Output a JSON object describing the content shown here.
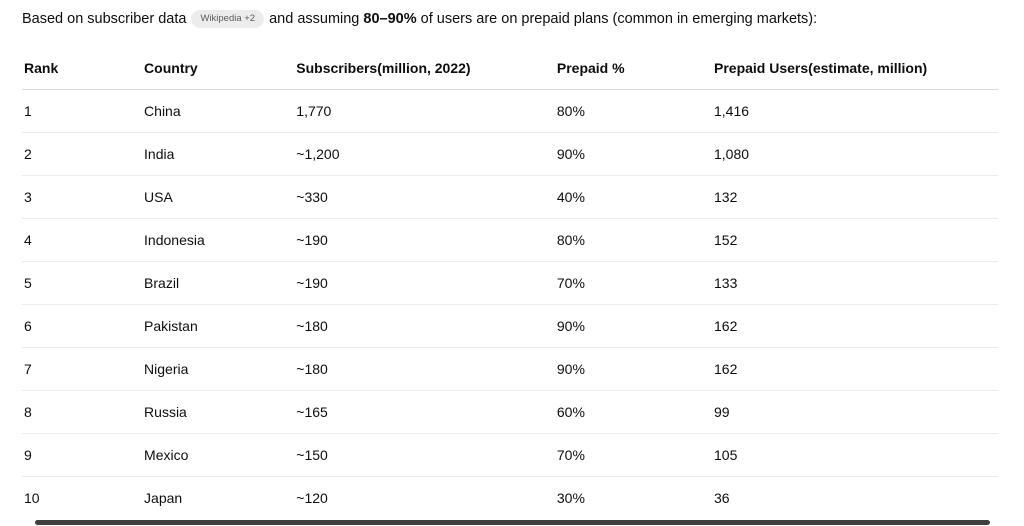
{
  "intro": {
    "text_before": "Based on subscriber data",
    "badge": "Wikipedia +2",
    "text_middle": "and assuming",
    "bold": "80–90%",
    "text_after": "of users are on prepaid plans (common in emerging markets):"
  },
  "table": {
    "columns": [
      "Rank",
      "Country",
      "Subscribers(million, 2022)",
      "Prepaid %",
      "Prepaid Users(estimate, million)"
    ],
    "rows": [
      [
        "1",
        "China",
        "1,770",
        "80%",
        "1,416"
      ],
      [
        "2",
        "India",
        "~1,200",
        "90%",
        "1,080"
      ],
      [
        "3",
        "USA",
        "~330",
        "40%",
        "132"
      ],
      [
        "4",
        "Indonesia",
        "~190",
        "80%",
        "152"
      ],
      [
        "5",
        "Brazil",
        "~190",
        "70%",
        "133"
      ],
      [
        "6",
        "Pakistan",
        "~180",
        "90%",
        "162"
      ],
      [
        "7",
        "Nigeria",
        "~180",
        "90%",
        "162"
      ],
      [
        "8",
        "Russia",
        "~165",
        "60%",
        "99"
      ],
      [
        "9",
        "Mexico",
        "~150",
        "70%",
        "105"
      ],
      [
        "10",
        "Japan",
        "~120",
        "30%",
        "36"
      ]
    ]
  },
  "colors": {
    "text": "#0d0d0d",
    "badge_bg": "#ececec",
    "badge_text": "#5d5d5d",
    "header_border": "#d9d9d9",
    "row_border": "#ececec",
    "bottom_bar": "#3f3f3f"
  }
}
